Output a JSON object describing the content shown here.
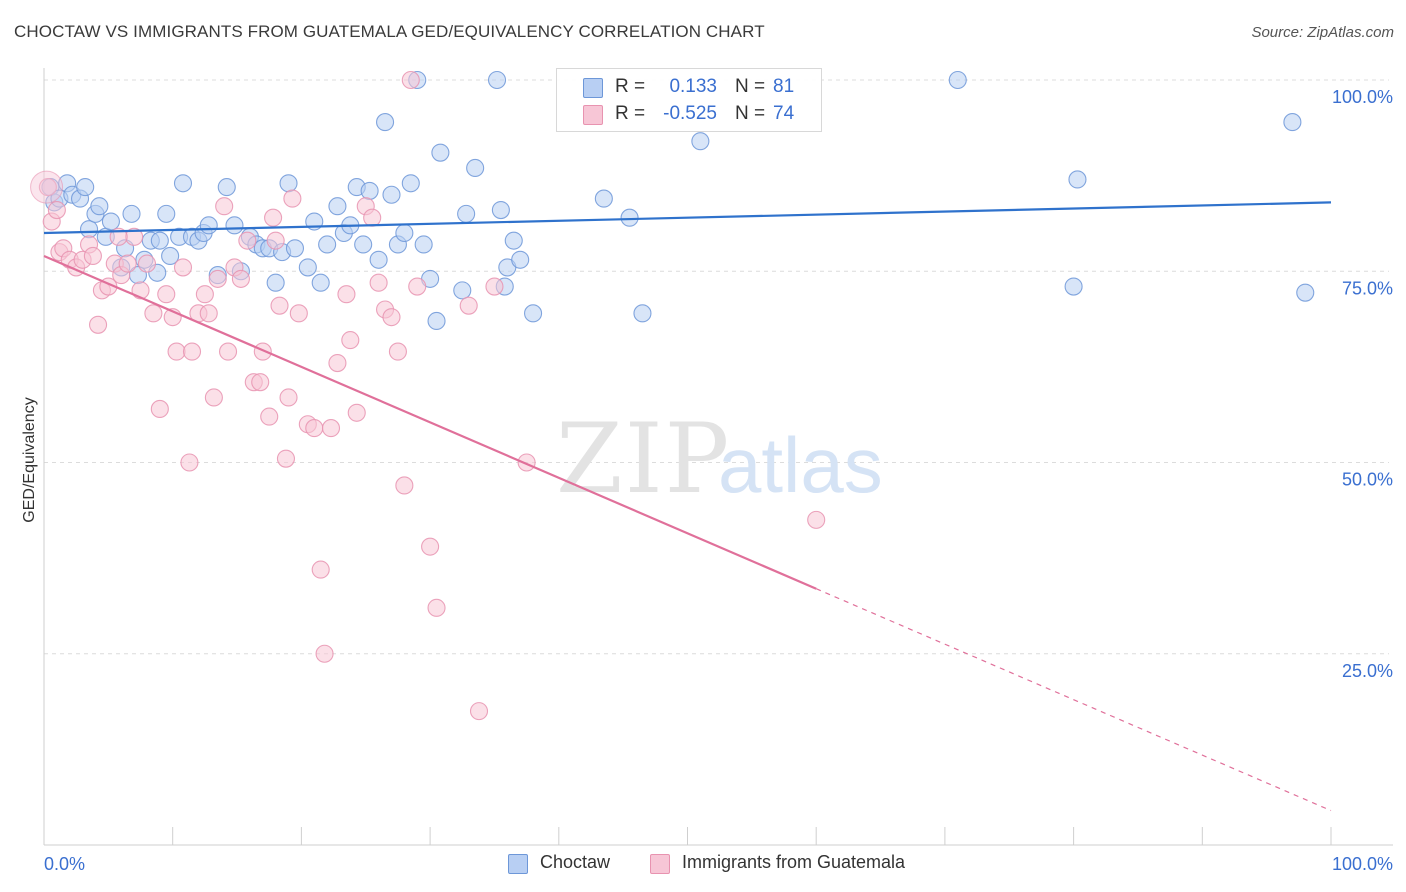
{
  "header": {
    "title": "CHOCTAW VS IMMIGRANTS FROM GUATEMALA GED/EQUIVALENCY CORRELATION CHART",
    "source": "Source: ZipAtlas.com"
  },
  "watermark": {
    "zip": "ZIP",
    "atlas": "atlas"
  },
  "legend": {
    "r_label": "R =",
    "n_label": "N =",
    "series": [
      {
        "name": "Choctaw",
        "r": "0.133",
        "n": "81"
      },
      {
        "name": "Immigrants from Guatemala",
        "r": "-0.525",
        "n": "74"
      }
    ]
  },
  "colors": {
    "choctaw_fill": "#b8cff3",
    "choctaw_stroke": "#6d97d8",
    "choctaw_line": "#2f72cc",
    "guatemala_fill": "#f7c6d6",
    "guatemala_stroke": "#e893b0",
    "guatemala_line": "#e0709a",
    "axis_label": "#3a6fd0",
    "grid": "#dcdcdc"
  },
  "chart_data": {
    "type": "scatter",
    "title": "CHOCTAW VS IMMIGRANTS FROM GUATEMALA GED/EQUIVALENCY CORRELATION CHART",
    "xlabel": "",
    "ylabel": "GED/Equivalency",
    "xlim": [
      0,
      100
    ],
    "ylim": [
      0,
      100
    ],
    "x_tick_labels": [
      "0.0%",
      "100.0%"
    ],
    "y_tick_labels": [
      "25.0%",
      "50.0%",
      "75.0%",
      "100.0%"
    ],
    "grid": "horizontal dashed",
    "legend_position": "top-center",
    "series": [
      {
        "name": "Choctaw",
        "r": 0.133,
        "n": 81,
        "trend": {
          "x": [
            0,
            100
          ],
          "y": [
            80.0,
            84.0
          ],
          "dashed_from": null
        },
        "points": [
          [
            0.5,
            86
          ],
          [
            0.8,
            84
          ],
          [
            1.2,
            84.5
          ],
          [
            1.8,
            86.5
          ],
          [
            2.2,
            85
          ],
          [
            2.8,
            84.5
          ],
          [
            3.5,
            80.5
          ],
          [
            4,
            82.5
          ],
          [
            4.3,
            83.5
          ],
          [
            4.8,
            79.5
          ],
          [
            5.2,
            81.5
          ],
          [
            6.0,
            75.5
          ],
          [
            6.3,
            78
          ],
          [
            6.8,
            82.5
          ],
          [
            7.3,
            74.5
          ],
          [
            7.8,
            76.5
          ],
          [
            8.3,
            79
          ],
          [
            9.0,
            79
          ],
          [
            9.5,
            82.5
          ],
          [
            9.8,
            77
          ],
          [
            10.5,
            79.5
          ],
          [
            10.8,
            86.5
          ],
          [
            11.5,
            79.5
          ],
          [
            12.0,
            79
          ],
          [
            12.4,
            80
          ],
          [
            12.8,
            81
          ],
          [
            13.5,
            74.5
          ],
          [
            14.2,
            86
          ],
          [
            14.8,
            81
          ],
          [
            15.3,
            75
          ],
          [
            16.0,
            79.5
          ],
          [
            16.5,
            78.5
          ],
          [
            17.0,
            78
          ],
          [
            17.5,
            78
          ],
          [
            18.0,
            73.5
          ],
          [
            18.5,
            77.5
          ],
          [
            19.0,
            86.5
          ],
          [
            19.5,
            78
          ],
          [
            20.5,
            75.5
          ],
          [
            21.0,
            81.5
          ],
          [
            21.5,
            73.5
          ],
          [
            22.0,
            78.5
          ],
          [
            22.8,
            83.5
          ],
          [
            23.3,
            80
          ],
          [
            23.8,
            81
          ],
          [
            24.3,
            86
          ],
          [
            24.8,
            78.5
          ],
          [
            25.3,
            85.5
          ],
          [
            26.0,
            76.5
          ],
          [
            26.5,
            94.5
          ],
          [
            27.0,
            85
          ],
          [
            27.5,
            78.5
          ],
          [
            28.0,
            80
          ],
          [
            28.5,
            86.5
          ],
          [
            29.0,
            100
          ],
          [
            29.5,
            78.5
          ],
          [
            30.0,
            74
          ],
          [
            30.5,
            68.5
          ],
          [
            30.8,
            90.5
          ],
          [
            32.5,
            72.5
          ],
          [
            32.8,
            82.5
          ],
          [
            33.5,
            88.5
          ],
          [
            35.2,
            100
          ],
          [
            35.5,
            83
          ],
          [
            35.8,
            73
          ],
          [
            36.0,
            75.5
          ],
          [
            36.5,
            79
          ],
          [
            37.0,
            76.5
          ],
          [
            38.0,
            69.5
          ],
          [
            43.5,
            84.5
          ],
          [
            45.5,
            82
          ],
          [
            46.5,
            69.5
          ],
          [
            51.0,
            92
          ],
          [
            71.0,
            100
          ],
          [
            80.0,
            73
          ],
          [
            80.3,
            87
          ],
          [
            97.0,
            94.5
          ],
          [
            98.0,
            72.2
          ],
          [
            3.2,
            86
          ],
          [
            8.8,
            74.8
          ]
        ]
      },
      {
        "name": "Immigrants from Guatemala",
        "r": -0.525,
        "n": 74,
        "trend": {
          "x": [
            0,
            100
          ],
          "y": [
            77.0,
            4.5
          ],
          "dashed_from": 60
        },
        "points": [
          [
            0.3,
            86
          ],
          [
            0.6,
            81.5
          ],
          [
            1.2,
            77.5
          ],
          [
            1.5,
            78
          ],
          [
            2.0,
            76.5
          ],
          [
            2.5,
            75.5
          ],
          [
            3.0,
            76.5
          ],
          [
            3.5,
            78.5
          ],
          [
            3.8,
            77
          ],
          [
            4.2,
            68
          ],
          [
            4.5,
            72.5
          ],
          [
            5.0,
            73
          ],
          [
            5.5,
            76
          ],
          [
            6.0,
            74.5
          ],
          [
            6.5,
            76
          ],
          [
            7.0,
            79.5
          ],
          [
            7.5,
            72.5
          ],
          [
            8.0,
            76
          ],
          [
            8.5,
            69.5
          ],
          [
            9.0,
            57
          ],
          [
            9.5,
            72
          ],
          [
            10.0,
            69
          ],
          [
            10.3,
            64.5
          ],
          [
            10.8,
            75.5
          ],
          [
            11.3,
            50
          ],
          [
            11.5,
            64.5
          ],
          [
            12.0,
            69.5
          ],
          [
            12.5,
            72
          ],
          [
            12.8,
            69.5
          ],
          [
            13.2,
            58.5
          ],
          [
            13.5,
            74
          ],
          [
            14.0,
            83.5
          ],
          [
            14.3,
            64.5
          ],
          [
            14.8,
            75.5
          ],
          [
            15.3,
            74
          ],
          [
            15.8,
            79
          ],
          [
            16.3,
            60.5
          ],
          [
            16.8,
            60.5
          ],
          [
            17.0,
            64.5
          ],
          [
            17.5,
            56
          ],
          [
            17.8,
            82
          ],
          [
            18.0,
            79
          ],
          [
            18.3,
            70.5
          ],
          [
            18.8,
            50.5
          ],
          [
            19.0,
            58.5
          ],
          [
            19.3,
            84.5
          ],
          [
            19.8,
            69.5
          ],
          [
            20.5,
            55
          ],
          [
            21.0,
            54.5
          ],
          [
            21.5,
            36
          ],
          [
            21.8,
            25
          ],
          [
            22.3,
            54.5
          ],
          [
            22.8,
            63
          ],
          [
            23.5,
            72
          ],
          [
            23.8,
            66
          ],
          [
            24.3,
            56.5
          ],
          [
            25.0,
            83.5
          ],
          [
            25.5,
            82
          ],
          [
            26.0,
            73.5
          ],
          [
            26.5,
            70
          ],
          [
            27.0,
            69
          ],
          [
            27.5,
            64.5
          ],
          [
            28.0,
            47
          ],
          [
            28.5,
            100
          ],
          [
            29.0,
            73
          ],
          [
            30.0,
            39
          ],
          [
            30.5,
            31
          ],
          [
            33.0,
            70.5
          ],
          [
            33.8,
            17.5
          ],
          [
            35.0,
            73
          ],
          [
            37.5,
            50
          ],
          [
            60.0,
            42.5
          ],
          [
            5.8,
            79.5
          ],
          [
            1.0,
            83
          ]
        ]
      }
    ]
  }
}
